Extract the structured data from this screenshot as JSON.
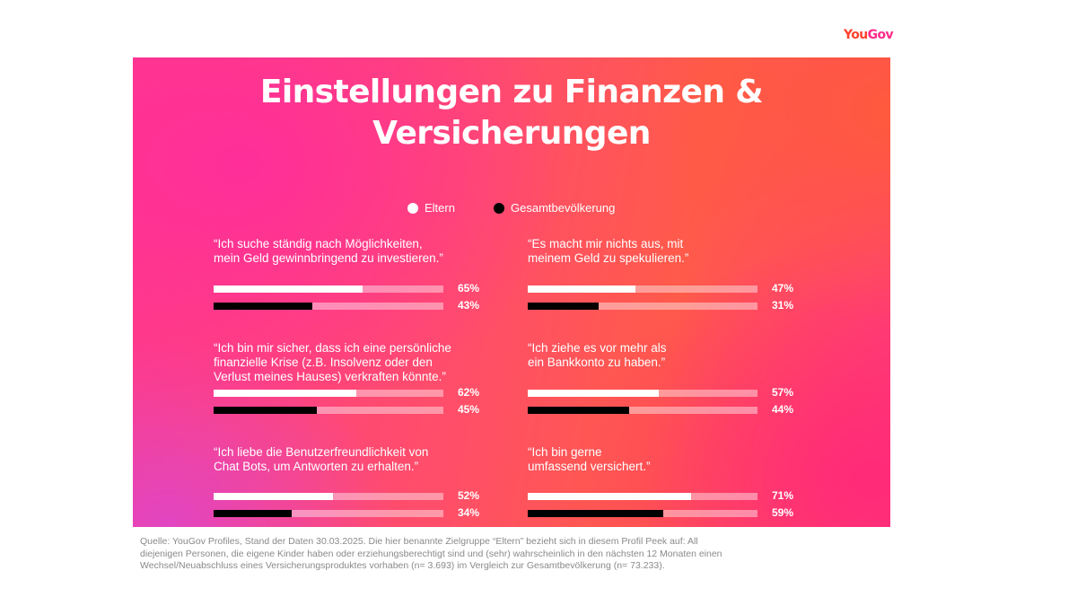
{
  "brand": "YouGov",
  "title_lines": [
    "Einstellungen zu Finanzen &",
    "Versicherungen"
  ],
  "colors": {
    "eltern": "#ffffff",
    "gesamt": "#000000",
    "track": "rgba(255,255,255,0.42)",
    "panel_pink": "#ff2d9b",
    "panel_orange": "#ff5c38"
  },
  "chart_data": {
    "type": "bar",
    "orientation": "horizontal",
    "unit": "%",
    "xlim": [
      0,
      100
    ],
    "legend": [
      "Eltern",
      "Gesamtbevölkerung"
    ],
    "series": [
      {
        "name": "Eltern",
        "values": [
          65,
          47,
          62,
          57,
          52,
          71
        ]
      },
      {
        "name": "Gesamtbevölkerung",
        "values": [
          43,
          31,
          45,
          44,
          34,
          59
        ]
      }
    ],
    "items": [
      {
        "quote_lines": [
          "“Ich suche ständig nach Möglichkeiten,",
          "mein Geld gewinnbringend zu investieren.”"
        ],
        "values": [
          65,
          43
        ],
        "labels": [
          "65%",
          "43%"
        ]
      },
      {
        "quote_lines": [
          "“Es macht mir nichts aus, mit",
          "meinem Geld zu spekulieren.”"
        ],
        "values": [
          47,
          31
        ],
        "labels": [
          "47%",
          "31%"
        ]
      },
      {
        "quote_lines": [
          "“Ich bin mir sicher, dass ich eine persönliche",
          "finanzielle Krise (z.B. Insolvenz oder den",
          "Verlust meines Hauses) verkraften könnte.”"
        ],
        "values": [
          62,
          45
        ],
        "labels": [
          "62%",
          "45%"
        ]
      },
      {
        "quote_lines": [
          "“Ich ziehe es vor mehr als",
          "ein Bankkonto zu haben.”"
        ],
        "values": [
          57,
          44
        ],
        "labels": [
          "57%",
          "44%"
        ]
      },
      {
        "quote_lines": [
          "“Ich liebe die Benutzerfreundlichkeit von",
          "Chat Bots, um Antworten zu erhalten.”"
        ],
        "values": [
          52,
          34
        ],
        "labels": [
          "52%",
          "34%"
        ]
      },
      {
        "quote_lines": [
          "“Ich bin gerne",
          "umfassend versichert.”"
        ],
        "values": [
          71,
          59
        ],
        "labels": [
          "71%",
          "59%"
        ]
      }
    ]
  },
  "source_lines": [
    "Quelle: YouGov Profiles, Stand der Daten 30.03.2025. Die hier benannte Zielgruppe “Eltern” bezieht sich in diesem Profil Peek auf: All",
    "diejenigen Personen, die eigene Kinder haben oder erziehungsberechtigt sind und (sehr) wahrscheinlich in den nächsten 12 Monaten einen",
    "Wechsel/Neuabschluss eines Versicherungsproduktes vorhaben (n= 3.693) im Vergleich zur Gesamtbevölkerung (n= 73.233)."
  ]
}
